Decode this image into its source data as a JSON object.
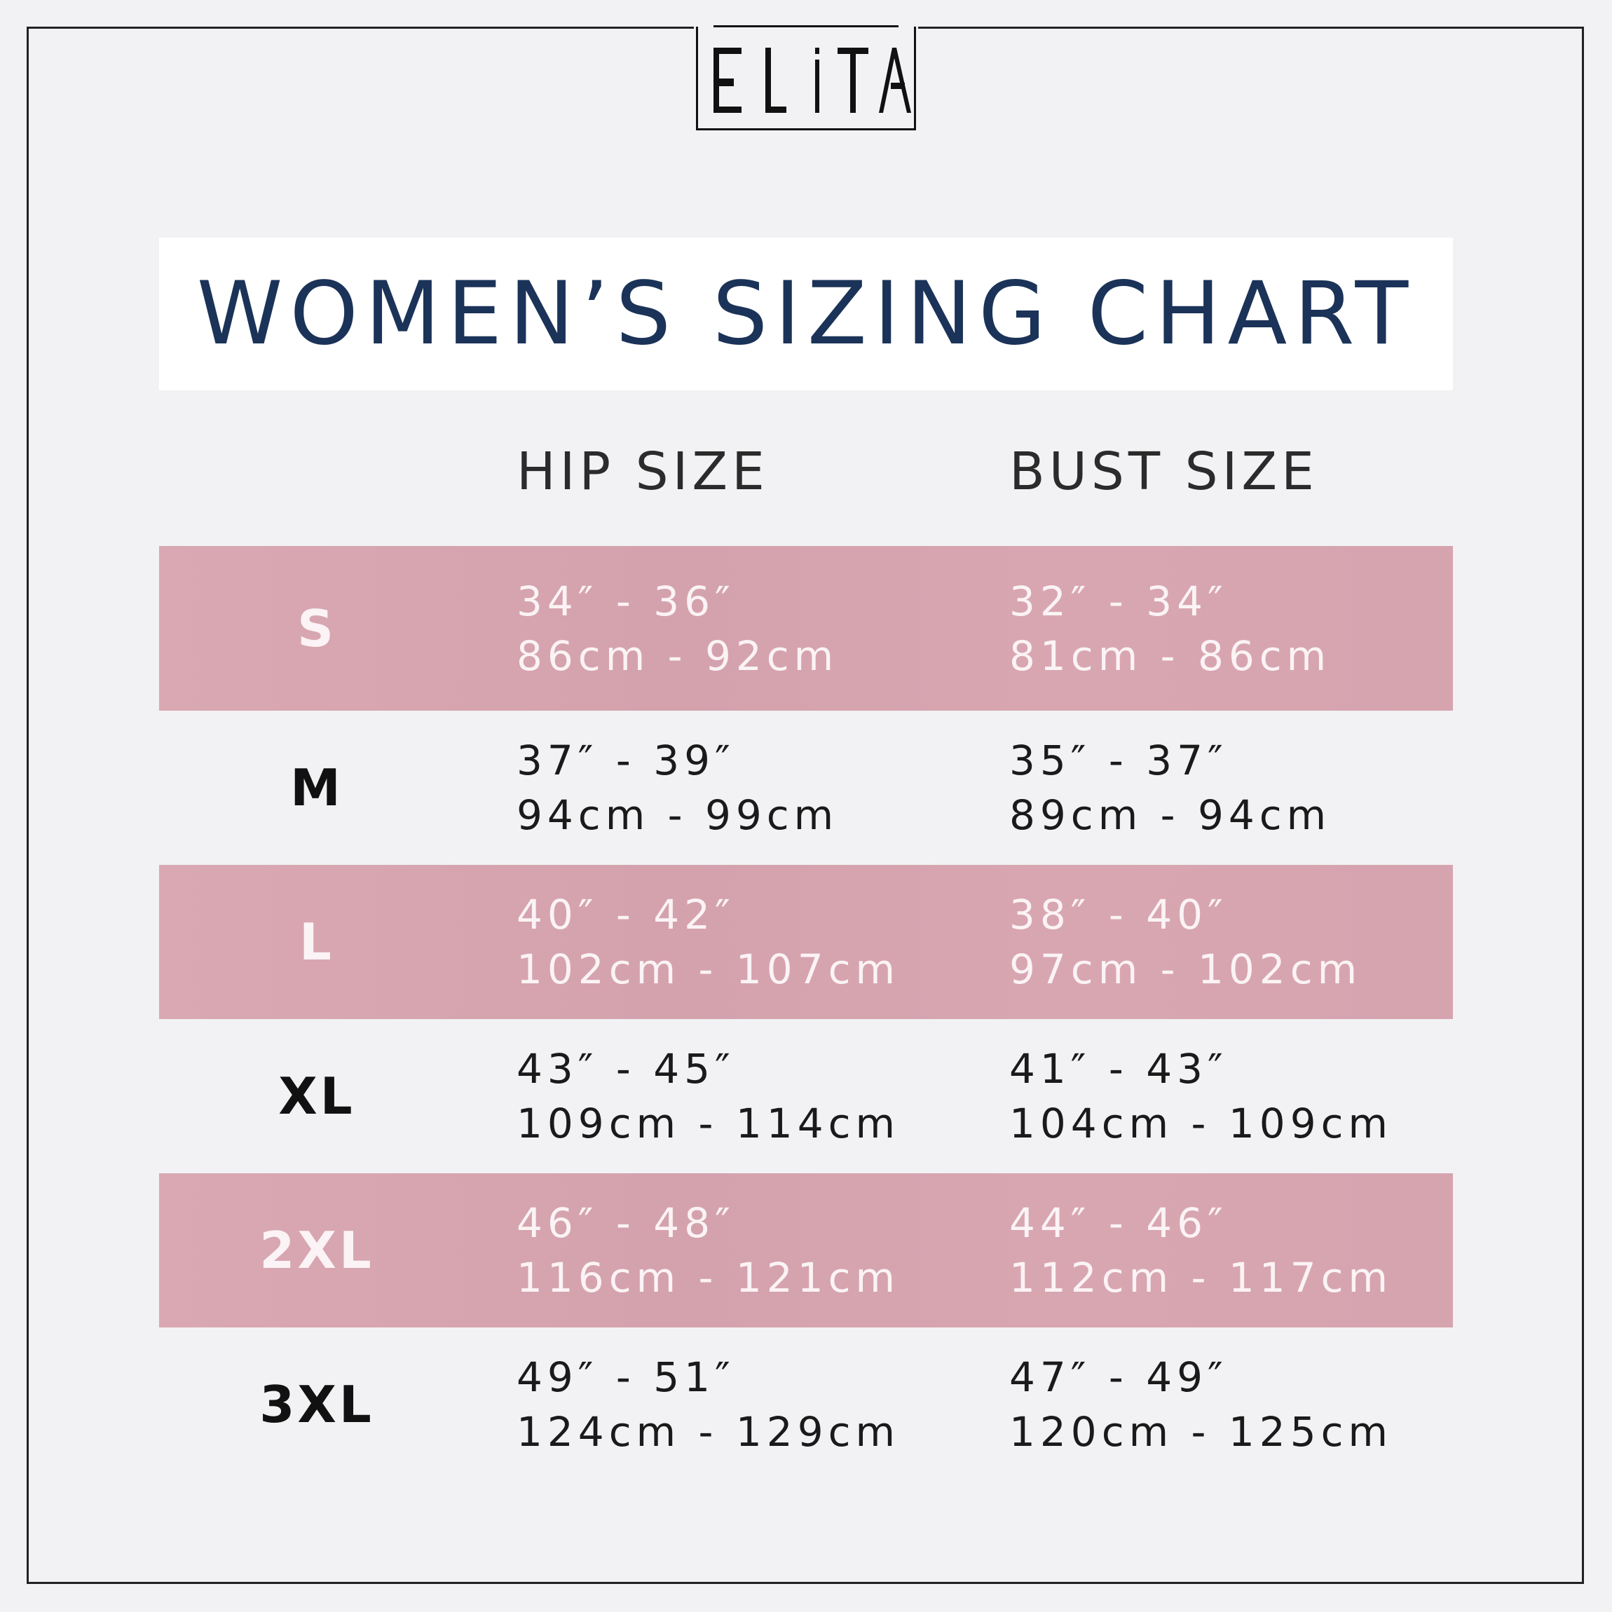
{
  "brand": {
    "logo_text": "ELiTA"
  },
  "title": "WOMEN’S SIZING CHART",
  "columns": {
    "hip": "HIP SIZE",
    "bust": "BUST SIZE"
  },
  "colors": {
    "title": "#1b3358",
    "row_highlight": "#d8a7b1",
    "background": "#f2f2f4"
  },
  "rows": [
    {
      "size": "S",
      "hip_in": "34″ - 36″",
      "hip_cm": "86cm - 92cm",
      "bust_in": "32″ - 34″",
      "bust_cm": "81cm - 86cm"
    },
    {
      "size": "M",
      "hip_in": "37″ - 39″",
      "hip_cm": "94cm - 99cm",
      "bust_in": "35″ - 37″",
      "bust_cm": "89cm - 94cm"
    },
    {
      "size": "L",
      "hip_in": "40″ - 42″",
      "hip_cm": "102cm - 107cm",
      "bust_in": "38″ - 40″",
      "bust_cm": "97cm - 102cm"
    },
    {
      "size": "XL",
      "hip_in": "43″ - 45″",
      "hip_cm": "109cm - 114cm",
      "bust_in": "41″ - 43″",
      "bust_cm": "104cm - 109cm"
    },
    {
      "size": "2XL",
      "hip_in": "46″ - 48″",
      "hip_cm": "116cm - 121cm",
      "bust_in": "44″ - 46″",
      "bust_cm": "112cm - 117cm"
    },
    {
      "size": "3XL",
      "hip_in": "49″ - 51″",
      "hip_cm": "124cm - 129cm",
      "bust_in": "47″ - 49″",
      "bust_cm": "120cm - 125cm"
    }
  ]
}
